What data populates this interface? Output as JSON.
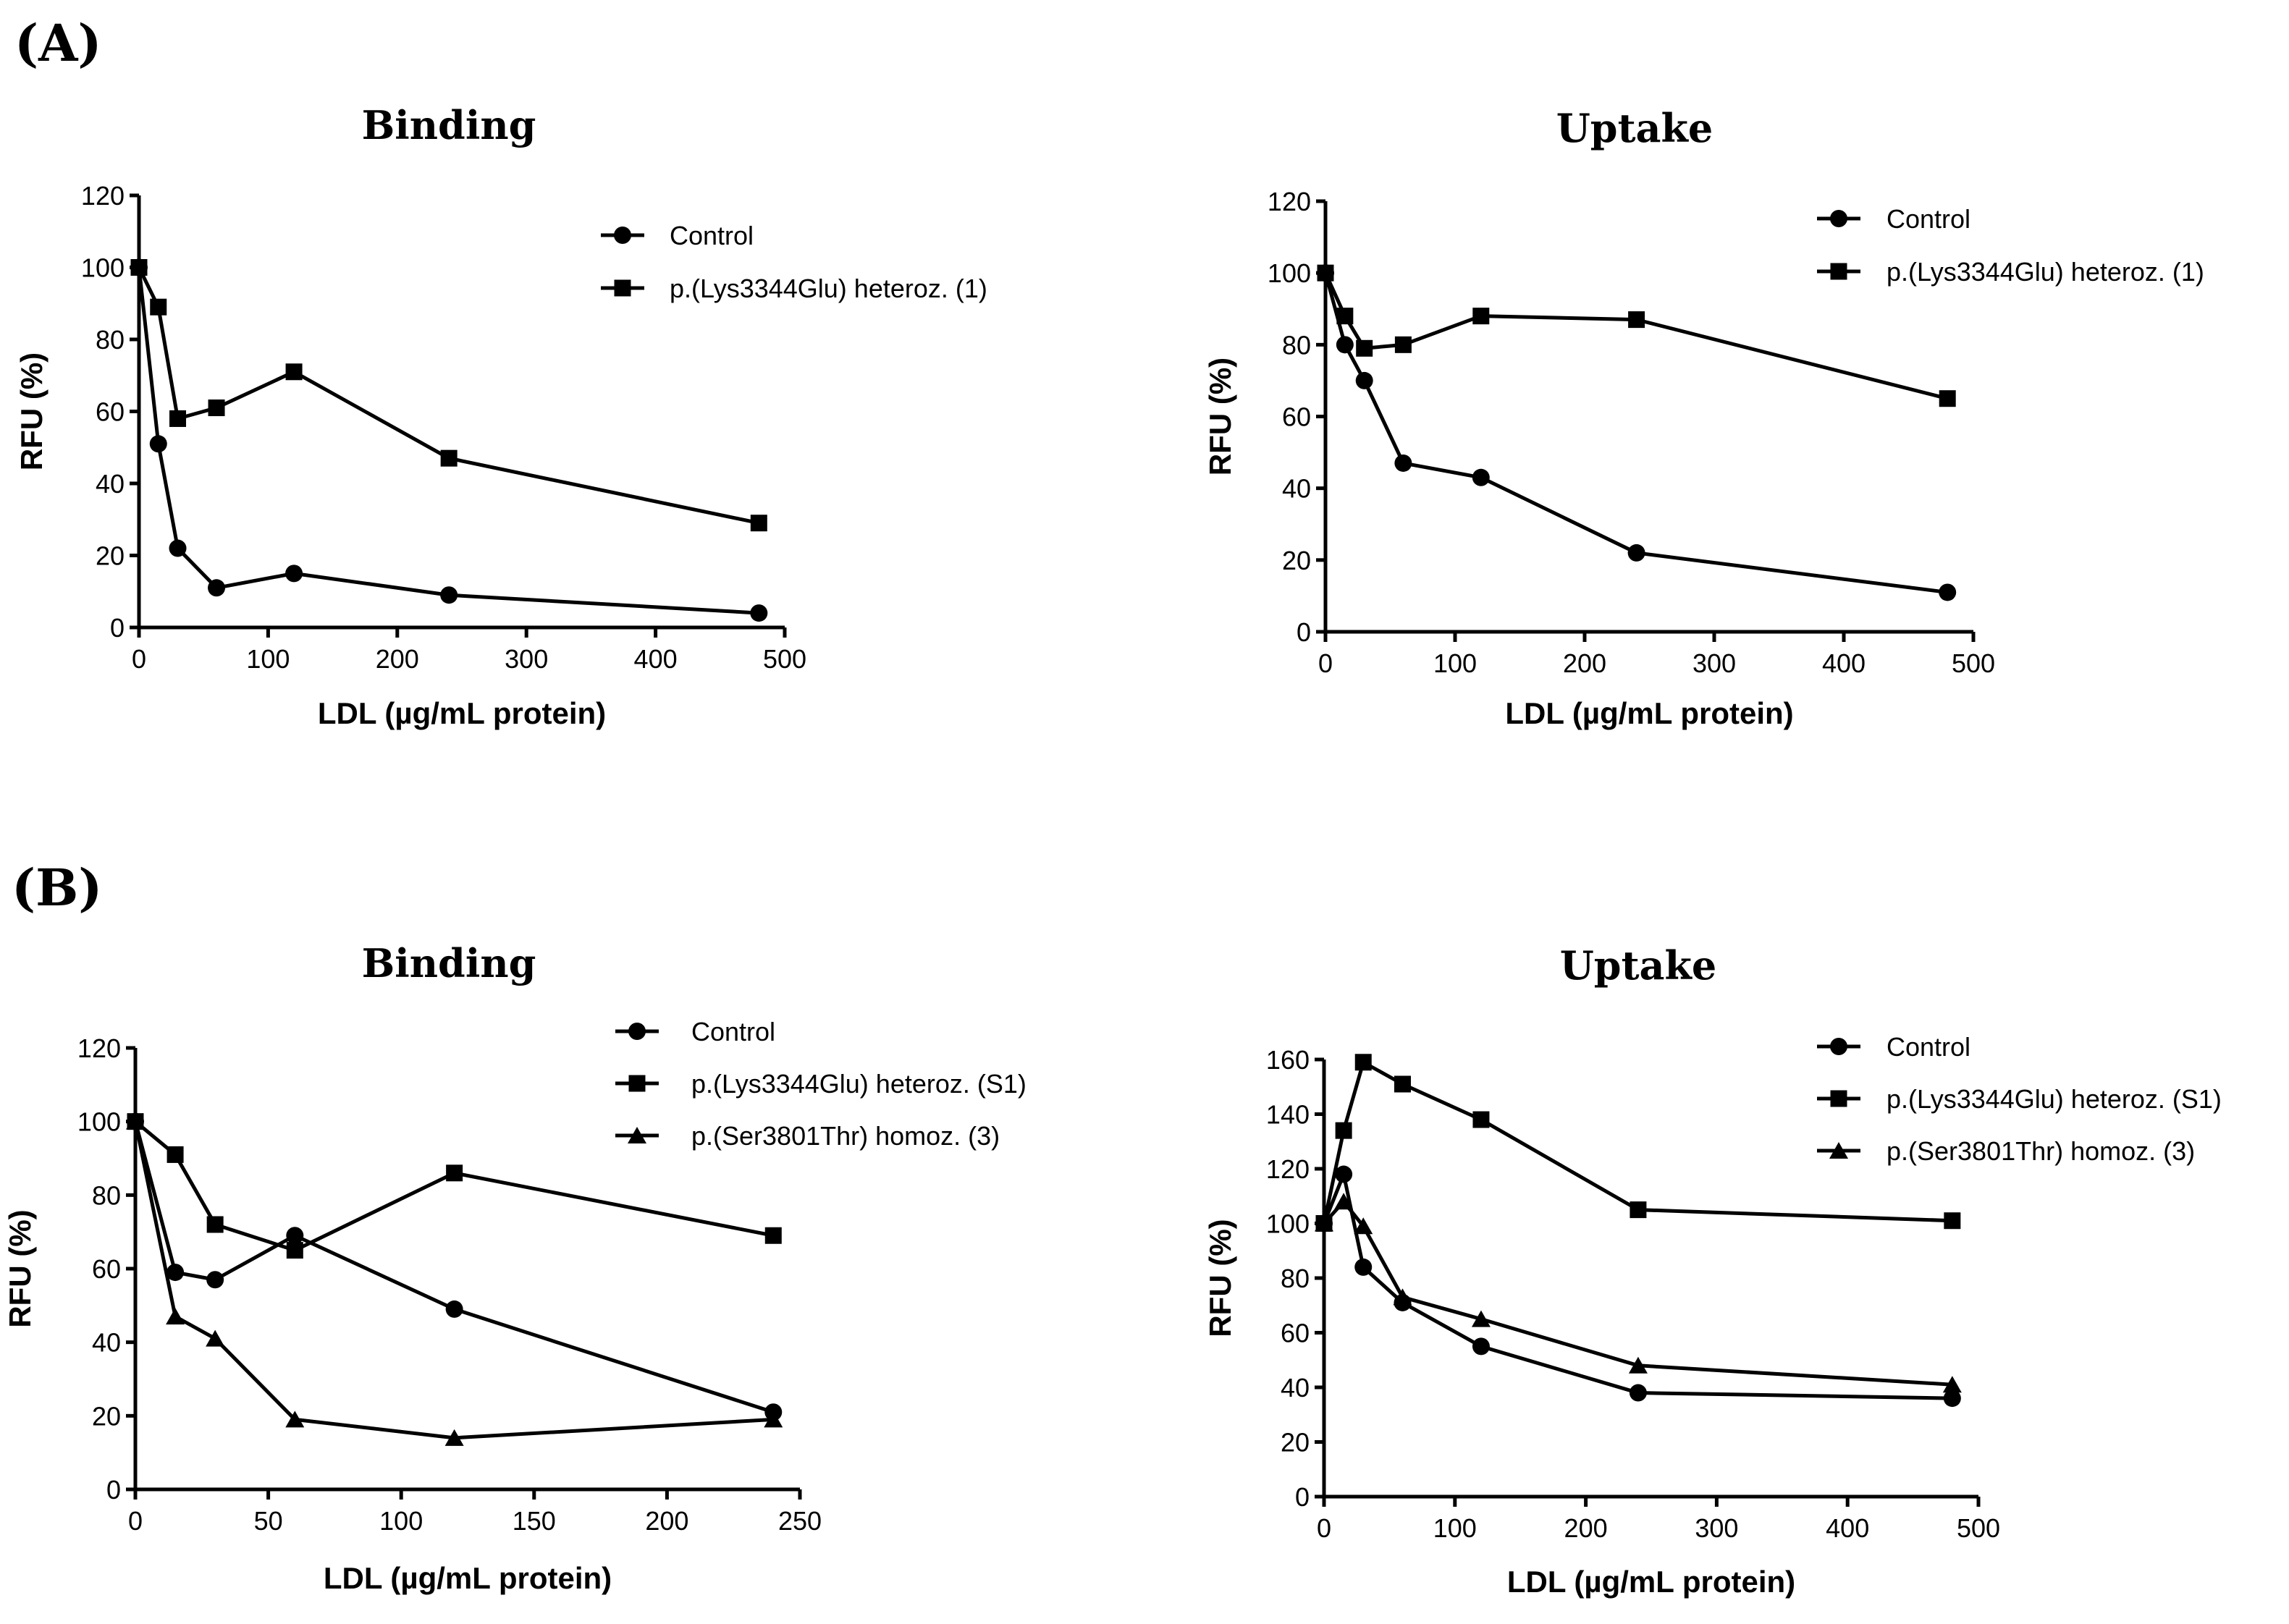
{
  "panels": [
    {
      "label": "(A)"
    },
    {
      "label": "(B)"
    }
  ],
  "chart_data": [
    {
      "type": "line",
      "panel": "(A)",
      "title": "Binding",
      "xlabel": "LDL (µg/mL protein)",
      "ylabel": "RFU (%)",
      "xlim": [
        0,
        500
      ],
      "ylim": [
        0,
        120
      ],
      "xticks": [
        0,
        100,
        200,
        300,
        400,
        500
      ],
      "yticks": [
        0,
        20,
        40,
        60,
        80,
        100,
        120
      ],
      "x": [
        0,
        15,
        30,
        60,
        120,
        240,
        480
      ],
      "series": [
        {
          "name": "Control",
          "marker": "circle",
          "values": [
            100,
            51,
            22,
            11,
            15,
            9,
            4
          ]
        },
        {
          "name": "p.(Lys3344Glu) heteroz. (1)",
          "marker": "square",
          "values": [
            100,
            89,
            58,
            61,
            71,
            47,
            29
          ]
        }
      ]
    },
    {
      "type": "line",
      "panel": "(A)",
      "title": "Uptake",
      "xlabel": "LDL (µg/mL protein)",
      "ylabel": "RFU (%)",
      "xlim": [
        0,
        500
      ],
      "ylim": [
        0,
        120
      ],
      "xticks": [
        0,
        100,
        200,
        300,
        400,
        500
      ],
      "yticks": [
        0,
        20,
        40,
        60,
        80,
        100,
        120
      ],
      "x": [
        0,
        15,
        30,
        60,
        120,
        240,
        480
      ],
      "series": [
        {
          "name": "Control",
          "marker": "circle",
          "values": [
            100,
            80,
            70,
            47,
            43,
            22,
            11
          ]
        },
        {
          "name": "p.(Lys3344Glu) heteroz. (1)",
          "marker": "square",
          "values": [
            100,
            88,
            79,
            80,
            88,
            87,
            65
          ]
        }
      ]
    },
    {
      "type": "line",
      "panel": "(B)",
      "title": "Binding",
      "xlabel": "LDL (µg/mL protein)",
      "ylabel": "RFU (%)",
      "xlim": [
        0,
        250
      ],
      "ylim": [
        0,
        120
      ],
      "xticks": [
        0,
        50,
        100,
        150,
        200,
        250
      ],
      "yticks": [
        0,
        20,
        40,
        60,
        80,
        100,
        120
      ],
      "x": [
        0,
        15,
        30,
        60,
        120,
        240
      ],
      "series": [
        {
          "name": "Control",
          "marker": "circle",
          "values": [
            100,
            59,
            57,
            69,
            49,
            21
          ]
        },
        {
          "name": "p.(Lys3344Glu) heteroz. (S1)",
          "marker": "square",
          "values": [
            100,
            91,
            72,
            65,
            86,
            69
          ]
        },
        {
          "name": "p.(Ser3801Thr) homoz. (3)",
          "marker": "triangle",
          "values": [
            100,
            47,
            41,
            19,
            14,
            19
          ]
        }
      ]
    },
    {
      "type": "line",
      "panel": "(B)",
      "title": "Uptake",
      "xlabel": "LDL (µg/mL protein)",
      "ylabel": "RFU (%)",
      "xlim": [
        0,
        500
      ],
      "ylim": [
        0,
        160
      ],
      "xticks": [
        0,
        100,
        200,
        300,
        400,
        500
      ],
      "yticks": [
        0,
        20,
        40,
        60,
        80,
        100,
        120,
        140,
        160
      ],
      "x": [
        0,
        15,
        30,
        60,
        120,
        240,
        480
      ],
      "series": [
        {
          "name": "Control",
          "marker": "circle",
          "values": [
            100,
            118,
            84,
            71,
            55,
            38,
            36
          ]
        },
        {
          "name": "p.(Lys3344Glu) heteroz. (S1)",
          "marker": "square",
          "values": [
            100,
            134,
            159,
            151,
            138,
            105,
            101
          ]
        },
        {
          "name": "p.(Ser3801Thr) homoz. (3)",
          "marker": "triangle",
          "values": [
            100,
            108,
            99,
            73,
            65,
            48,
            41
          ]
        }
      ]
    }
  ]
}
